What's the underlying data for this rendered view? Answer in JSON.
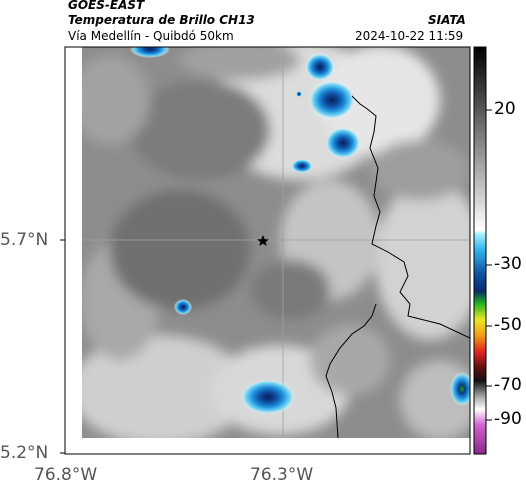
{
  "header": {
    "satellite": "GOES-EAST",
    "product": "Temperatura de Brillo CH13",
    "region": "Vía Medellín - Quibdó 50km",
    "source": "SIATA",
    "datetime": "2024-10-22 11:59"
  },
  "axes": {
    "y_ticks": [
      "5.7°N",
      "5.2°N"
    ],
    "x_ticks": [
      "76.8°W",
      "76.3°W"
    ]
  },
  "colorbar": {
    "labels": [
      "20",
      "-30",
      "-50",
      "-70",
      "-90"
    ]
  },
  "marker": {
    "icon": "star-icon"
  }
}
